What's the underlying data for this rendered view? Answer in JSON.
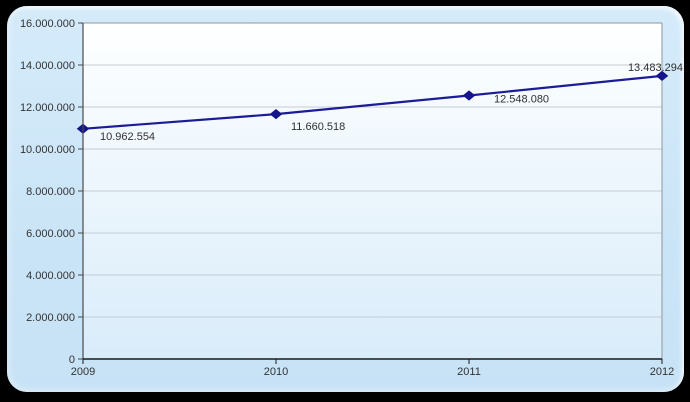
{
  "window": {
    "outer_background": "#000000",
    "panel_background": "#cbe5f7"
  },
  "chart_data": {
    "type": "line",
    "title": "",
    "xlabel": "",
    "ylabel": "",
    "categories": [
      "2009",
      "2010",
      "2011",
      "2012"
    ],
    "series": [
      {
        "name": "series-1",
        "values": [
          10962554,
          11660518,
          12548080,
          13483294
        ],
        "point_labels": [
          "10.962.554",
          "11.660.518",
          "12.548.080",
          "13.483.294"
        ]
      }
    ],
    "ylim": [
      0,
      16000000
    ],
    "y_ticks": [
      {
        "value": 0,
        "label": "0"
      },
      {
        "value": 2000000,
        "label": "2.000.000"
      },
      {
        "value": 4000000,
        "label": "4.000.000"
      },
      {
        "value": 6000000,
        "label": "6.000.000"
      },
      {
        "value": 8000000,
        "label": "8.000.000"
      },
      {
        "value": 10000000,
        "label": "10.000.000"
      },
      {
        "value": 12000000,
        "label": "12.000.000"
      },
      {
        "value": 14000000,
        "label": "14.000.000"
      },
      {
        "value": 16000000,
        "label": "16.000.000"
      }
    ],
    "grid": "horizontal",
    "legend": "none",
    "marker": "diamond",
    "colors": {
      "line": "#1c1c96",
      "marker": "#15158c",
      "grid": "#c5ccd3",
      "axis": "#4a4a4a",
      "x_axis": "#1a1a1a",
      "plot_border": "#8f979e",
      "tick_label": "#333333",
      "point_label": "#303030",
      "plot_bg_top": "#feffff",
      "plot_bg_bottom": "#d9ecfa"
    }
  }
}
